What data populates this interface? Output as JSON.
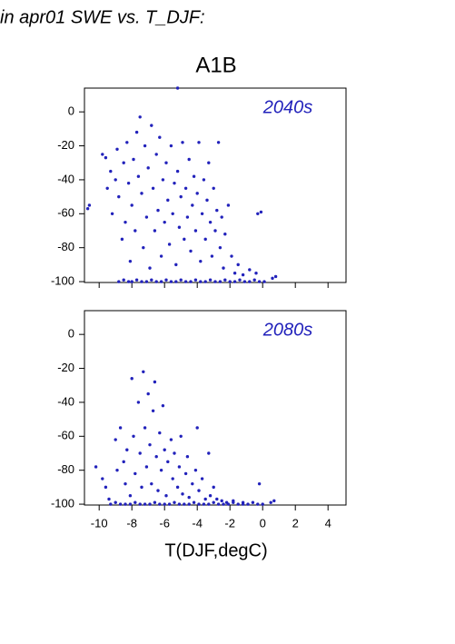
{
  "chart_data": [
    {
      "type": "scatter",
      "title": "in apr01 SWE vs. T_DJF:",
      "subtitle": "A1B",
      "annotation": "2040s",
      "color": "#2222bb",
      "xlim": [
        -10.9,
        5.1
      ],
      "ylim": [
        -100.5,
        14
      ],
      "xticks": [
        -10,
        -8,
        -6,
        -4,
        -2,
        0,
        2,
        4
      ],
      "yticks": [
        0,
        -20,
        -40,
        -60,
        -80,
        -100
      ],
      "show_xtick_labels": false,
      "x": [
        -8.8,
        -8.5,
        -8.2,
        -8.0,
        -7.7,
        -7.4,
        -7.1,
        -6.8,
        -6.5,
        -6.2,
        -5.9,
        -5.6,
        -5.3,
        -5.0,
        -4.7,
        -4.4,
        -4.1,
        -3.8,
        -3.5,
        -3.2,
        -2.9,
        -2.6,
        -2.3,
        -2.0,
        -1.7,
        -1.4,
        -1.1,
        -0.8,
        -0.5,
        -0.2,
        0.1,
        -10.7,
        -10.6,
        -9.8,
        -9.6,
        -9.5,
        -9.3,
        -9.2,
        -9,
        -8.9,
        -8.8,
        -8.6,
        -8.5,
        -8.4,
        -8.3,
        -8.2,
        -8.1,
        -8,
        -7.9,
        -7.8,
        -7.7,
        -7.6,
        -7.5,
        -7.4,
        -7.3,
        -7.2,
        -7.1,
        -7,
        -6.9,
        -6.8,
        -6.7,
        -6.6,
        -6.5,
        -6.4,
        -6.3,
        -6.2,
        -6.1,
        -6,
        -5.9,
        -5.8,
        -5.7,
        -5.6,
        -5.5,
        -5.4,
        -5.3,
        -5.2,
        -5.1,
        -5,
        -4.9,
        -4.8,
        -4.7,
        -4.6,
        -4.5,
        -4.4,
        -4.3,
        -4.2,
        -4.1,
        -4,
        -3.9,
        -3.8,
        -3.7,
        -3.6,
        -3.5,
        -3.4,
        -3.3,
        -3.2,
        -3.1,
        -3,
        -2.9,
        -2.8,
        -2.7,
        -2.6,
        -2.5,
        -2.4,
        -2.3,
        -2.1,
        -1.9,
        -1.7,
        -1.5,
        -1.2,
        -0.8,
        -0.4,
        -0.3,
        -0.1,
        0.6,
        0.8,
        -5.2
      ],
      "values": [
        -100,
        -99,
        -100,
        -100,
        -99,
        -100,
        -100,
        -99,
        -100,
        -100,
        -99,
        -100,
        -100,
        -99,
        -100,
        -100,
        -99,
        -100,
        -100,
        -99,
        -100,
        -100,
        -99,
        -100,
        -100,
        -99,
        -100,
        -100,
        -99,
        -100,
        -100,
        -57,
        -55,
        -25,
        -27,
        -45,
        -35,
        -60,
        -40,
        -22,
        -50,
        -75,
        -30,
        -65,
        -18,
        -42,
        -88,
        -55,
        -28,
        -70,
        -12,
        -38,
        -3,
        -48,
        -80,
        -20,
        -62,
        -33,
        -92,
        -8,
        -45,
        -70,
        -25,
        -58,
        -15,
        -85,
        -40,
        -65,
        -30,
        -52,
        -78,
        -20,
        -60,
        -42,
        -90,
        -35,
        -68,
        -50,
        -18,
        -75,
        -45,
        -62,
        -28,
        -82,
        -55,
        -38,
        -70,
        -48,
        -18,
        -88,
        -60,
        -40,
        -75,
        -52,
        -30,
        -65,
        -85,
        -45,
        -70,
        -58,
        -18,
        -80,
        -62,
        -92,
        -72,
        -55,
        -85,
        -95,
        -90,
        -96,
        -93,
        -95,
        -60,
        -59,
        -98,
        -97,
        14
      ]
    },
    {
      "type": "scatter",
      "annotation": "2080s",
      "x_label": "T(DJF,degC)",
      "color": "#2222bb",
      "xlim": [
        -10.9,
        5.1
      ],
      "ylim": [
        -100.5,
        14
      ],
      "xticks": [
        -10,
        -8,
        -6,
        -4,
        -2,
        0,
        2,
        4
      ],
      "yticks": [
        0,
        -20,
        -40,
        -60,
        -80,
        -100
      ],
      "show_xtick_labels": true,
      "x": [
        -9.3,
        -9,
        -8.7,
        -8.4,
        -8.1,
        -7.8,
        -7.5,
        -7.2,
        -6.9,
        -6.6,
        -6.3,
        -6,
        -5.7,
        -5.4,
        -5.1,
        -4.8,
        -4.5,
        -4.2,
        -3.9,
        -3.6,
        -3.3,
        -3,
        -2.7,
        -2.4,
        -2.1,
        -1.8,
        -1.5,
        -1.2,
        -0.9,
        -0.6,
        -0.3,
        0,
        -10.2,
        -9.8,
        -9.6,
        -9.4,
        -9,
        -8.9,
        -8.7,
        -8.5,
        -8.4,
        -8.3,
        -8.1,
        -8,
        -7.9,
        -7.8,
        -7.6,
        -7.5,
        -7.4,
        -7.3,
        -7.2,
        -7.1,
        -7,
        -6.9,
        -6.8,
        -6.7,
        -6.6,
        -6.5,
        -6.4,
        -6.3,
        -6.2,
        -6.1,
        -6,
        -5.9,
        -5.8,
        -5.6,
        -5.5,
        -5.4,
        -5.2,
        -5.1,
        -5,
        -4.9,
        -4.7,
        -4.6,
        -4.5,
        -4.3,
        -4.1,
        -4,
        -3.9,
        -3.7,
        -3.5,
        -3.3,
        -3.2,
        -3,
        -2.8,
        -2.5,
        -2.2,
        -1.8,
        -1.2,
        -0.2,
        0.5,
        0.7
      ],
      "values": [
        -100,
        -99,
        -100,
        -100,
        -100,
        -99,
        -100,
        -100,
        -100,
        -99,
        -100,
        -100,
        -100,
        -99,
        -100,
        -100,
        -100,
        -99,
        -100,
        -100,
        -100,
        -99,
        -100,
        -100,
        -100,
        -99,
        -100,
        -100,
        -100,
        -99,
        -100,
        -100,
        -78,
        -85,
        -90,
        -97,
        -62,
        -80,
        -55,
        -75,
        -88,
        -68,
        -95,
        -26,
        -60,
        -82,
        -40,
        -70,
        -90,
        -22,
        -55,
        -78,
        -35,
        -65,
        -88,
        -45,
        -28,
        -72,
        -92,
        -58,
        -80,
        -42,
        -68,
        -95,
        -75,
        -62,
        -85,
        -70,
        -90,
        -78,
        -60,
        -94,
        -82,
        -72,
        -96,
        -88,
        -80,
        -55,
        -92,
        -85,
        -97,
        -70,
        -95,
        -90,
        -97,
        -98,
        -99,
        -98,
        -99,
        -88,
        -99,
        -98
      ]
    }
  ]
}
